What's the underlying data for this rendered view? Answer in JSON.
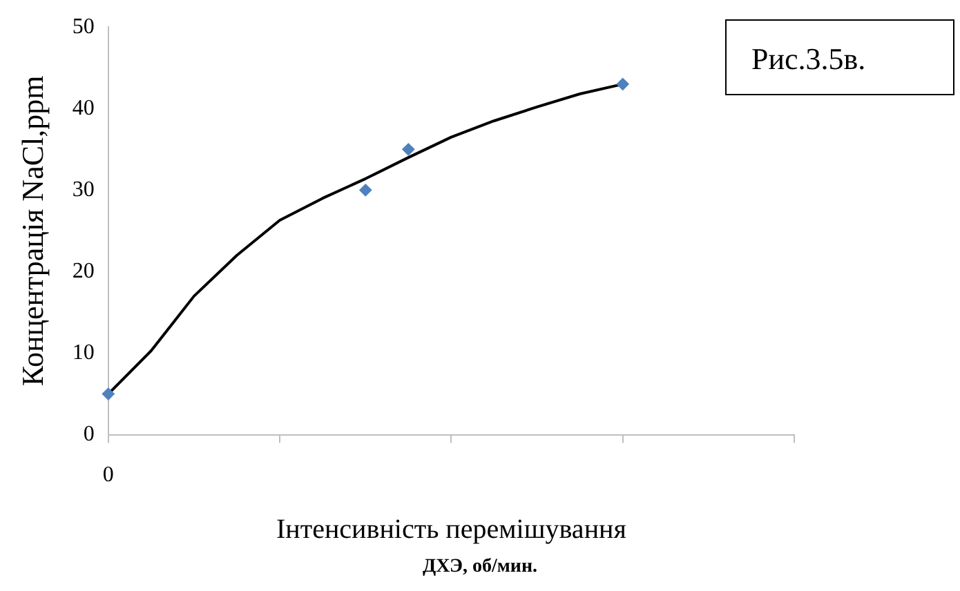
{
  "chart_data": {
    "type": "scatter",
    "xlabel": "Інтенсивність перемішування",
    "ylabel": "Концентрація NaCl,ppm",
    "annotations": [
      "ДХЭ, об/мин.",
      "Рис.3.5в."
    ],
    "categories": [
      "0",
      null,
      null,
      null,
      null,
      null,
      null,
      null,
      null,
      null,
      null,
      null,
      null,
      null,
      null,
      null,
      null
    ],
    "ylim": [
      0,
      50
    ],
    "yticks": [
      0,
      10,
      20,
      30,
      40,
      50
    ],
    "grid": false,
    "legend": false,
    "series": [
      {
        "type": "scatter",
        "color": "#4f81bd",
        "marker": "diamond",
        "values": [
          5,
          null,
          null,
          null,
          null,
          null,
          30,
          35,
          null,
          null,
          null,
          null,
          43,
          null,
          null,
          null,
          null
        ]
      },
      {
        "type": "line",
        "color": "#000000",
        "marker": "none",
        "line_style": "solid",
        "values": [
          5,
          10.3,
          17,
          22,
          26.3,
          29,
          31.4,
          34,
          36.5,
          38.5,
          40.2,
          41.8,
          43,
          null,
          null,
          null,
          null
        ]
      }
    ]
  }
}
